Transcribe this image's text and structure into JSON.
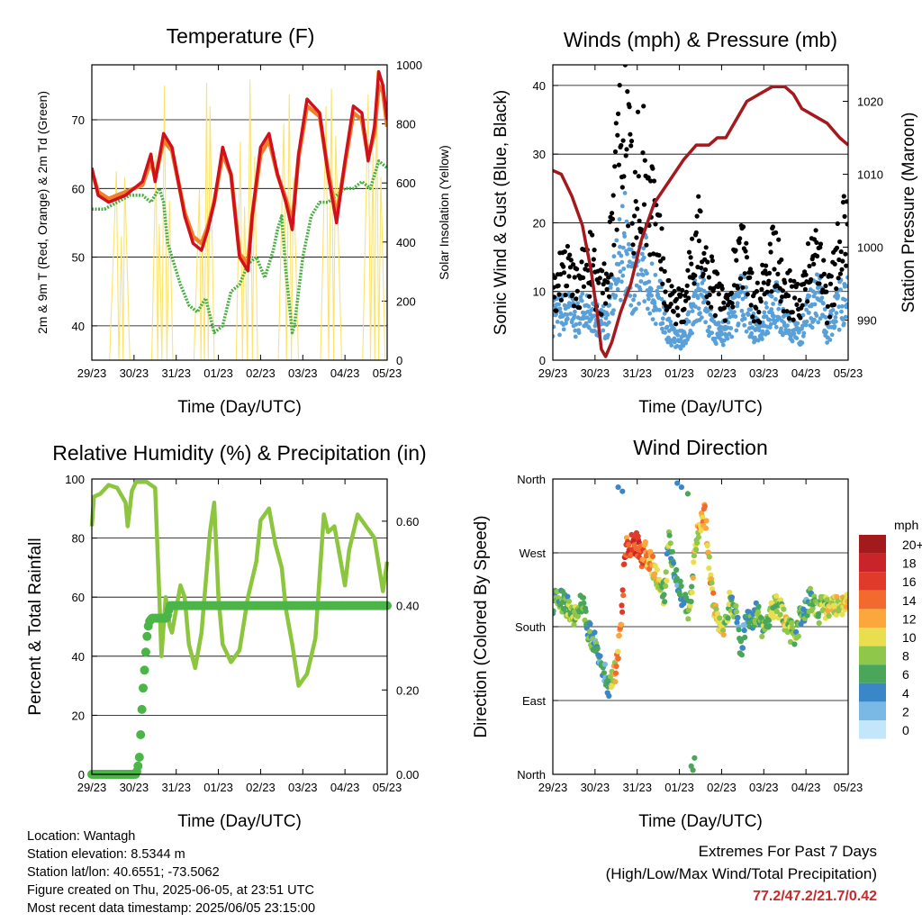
{
  "info": {
    "location": "Location: Wantagh",
    "elevation": "Station elevation: 8.5344 m",
    "latlon": "Station lat/lon: 40.6551; -73.5062",
    "created": "Figure created on Thu, 2025-06-05, at 23:51 UTC",
    "recent": "Most recent data timestamp: 2025/06/05 23:15:00"
  },
  "extremes": {
    "title": "Extremes For Past 7 Days",
    "subtitle": "(High/Low/Max Wind/Total Precipitation)",
    "values": "77.2/47.2/21.7/0.42"
  },
  "time_ticks": [
    "29/23",
    "30/23",
    "31/23",
    "01/23",
    "02/23",
    "03/23",
    "04/23",
    "05/23"
  ],
  "colors": {
    "temp2m": "#d0111b",
    "temp9m": "#f07f2a",
    "dewpoint": "#4aae43",
    "solar": "#fbe46e",
    "gust": "#000000",
    "sonic": "#5aa0d8",
    "pressure": "#a3191e",
    "rh": "#8cc63e",
    "precip": "#4cb548"
  },
  "chart_data": [
    {
      "type": "line",
      "title": "Temperature (F)",
      "xlabel": "Time (Day/UTC)",
      "ylabel": "2m & 9m T (Red, Orange) & 2m Td (Green)",
      "ylabel_right": "Solar Insolation (Yellow)",
      "ylim": [
        35,
        78
      ],
      "yticks": [
        40,
        50,
        60,
        70
      ],
      "ylim_right": [
        0,
        1000
      ],
      "yticks_right": [
        0,
        200,
        400,
        600,
        800,
        1000
      ],
      "x_days": [
        0,
        7
      ],
      "series": [
        {
          "key": "temp2m",
          "x": [
            0,
            0.15,
            0.4,
            0.8,
            1.2,
            1.4,
            1.5,
            1.7,
            1.9,
            2.2,
            2.4,
            2.6,
            2.75,
            2.9,
            3.1,
            3.3,
            3.5,
            3.7,
            3.8,
            4.0,
            4.2,
            4.4,
            4.6,
            4.75,
            4.9,
            5.1,
            5.4,
            5.6,
            5.8,
            6.0,
            6.2,
            6.4,
            6.55,
            6.7,
            6.8,
            6.9,
            7.0
          ],
          "y": [
            63,
            59,
            58,
            59,
            61,
            65,
            61,
            68,
            66,
            56,
            52,
            51,
            54,
            58,
            66,
            62,
            50,
            48,
            56,
            66,
            68,
            62,
            58,
            54,
            65,
            73,
            71,
            62,
            55,
            64,
            72,
            71,
            64,
            69,
            77,
            75,
            70
          ]
        },
        {
          "key": "temp9m",
          "x": [
            0,
            0.15,
            0.4,
            0.8,
            1.2,
            1.4,
            1.5,
            1.7,
            1.9,
            2.2,
            2.4,
            2.6,
            2.75,
            2.9,
            3.1,
            3.3,
            3.5,
            3.7,
            3.8,
            4.0,
            4.2,
            4.4,
            4.6,
            4.75,
            4.9,
            5.1,
            5.4,
            5.6,
            5.8,
            6.0,
            6.2,
            6.4,
            6.55,
            6.7,
            6.8,
            6.9,
            7.0
          ],
          "y": [
            62.5,
            59.5,
            58.5,
            59.5,
            60.5,
            64,
            61.5,
            67,
            65.5,
            56.5,
            53,
            52,
            54.5,
            58,
            65,
            62,
            50.5,
            49,
            56,
            65,
            67,
            62,
            58.5,
            55,
            64.5,
            72,
            70.5,
            62.5,
            56,
            63.5,
            71,
            70,
            64.5,
            68,
            75,
            74,
            69
          ]
        },
        {
          "key": "dewpoint",
          "x": [
            0,
            0.3,
            0.6,
            0.9,
            1.2,
            1.4,
            1.5,
            1.6,
            1.7,
            1.8,
            1.9,
            2.1,
            2.3,
            2.5,
            2.7,
            2.9,
            3.1,
            3.3,
            3.5,
            3.7,
            3.9,
            4.1,
            4.3,
            4.4,
            4.5,
            4.6,
            4.75,
            4.8,
            5.0,
            5.2,
            5.4,
            5.6,
            5.8,
            6.0,
            6.2,
            6.4,
            6.6,
            6.8,
            7.0
          ],
          "y": [
            57,
            57,
            58,
            59,
            59,
            58,
            59,
            60,
            58,
            52,
            50,
            46,
            43,
            42,
            44,
            39,
            40,
            45,
            46,
            49,
            50,
            47,
            51,
            54,
            56,
            48,
            39,
            40,
            50,
            56,
            58,
            58,
            59,
            60,
            60,
            61,
            60,
            64,
            63
          ]
        },
        {
          "key": "solar",
          "type": "bands",
          "days": [
            {
              "start": 0.42,
              "peaks": [
                [
                  0.58,
                  640
                ],
                [
                  0.7,
                  420
                ],
                [
                  0.78,
                  620
                ]
              ],
              "end": 0.9
            },
            {
              "start": 1.42,
              "peaks": [
                [
                  1.52,
                  700
                ],
                [
                  1.6,
                  460
                ],
                [
                  1.72,
                  930
                ],
                [
                  1.84,
                  540
                ]
              ],
              "end": 1.92
            },
            {
              "start": 2.42,
              "peaks": [
                [
                  2.55,
                  580
                ],
                [
                  2.62,
                  420
                ],
                [
                  2.72,
                  940
                ],
                [
                  2.8,
                  860
                ]
              ],
              "end": 2.9
            },
            {
              "start": 3.42,
              "peaks": [
                [
                  3.52,
                  740
                ],
                [
                  3.62,
                  520
                ],
                [
                  3.75,
                  950
                ],
                [
                  3.86,
                  690
                ]
              ],
              "end": 3.93
            },
            {
              "start": 4.42,
              "peaks": [
                [
                  4.55,
                  800
                ],
                [
                  4.68,
                  900
                ],
                [
                  4.78,
                  620
                ]
              ],
              "end": 4.9
            },
            {
              "start": 5.42,
              "peaks": [
                [
                  5.55,
                  860
                ],
                [
                  5.68,
                  920
                ],
                [
                  5.78,
                  760
                ]
              ],
              "end": 5.92
            },
            {
              "start": 6.42,
              "peaks": [
                [
                  6.55,
                  900
                ],
                [
                  6.66,
                  700
                ],
                [
                  6.75,
                  980
                ],
                [
                  6.85,
                  620
                ]
              ],
              "end": 6.95
            }
          ]
        }
      ]
    },
    {
      "type": "scatter",
      "title": "Winds (mph) & Pressure (mb)",
      "xlabel": "Time (Day/UTC)",
      "ylabel": "Sonic Wind & Gust (Blue, Black)",
      "ylabel_right": "Station Pressure (Maroon)",
      "ylim": [
        0,
        43
      ],
      "yticks": [
        0,
        10,
        20,
        30,
        40
      ],
      "ylim_right": [
        984.5,
        1025
      ],
      "yticks_right": [
        990,
        1000,
        1010,
        1020
      ],
      "x_days": [
        0,
        7
      ],
      "gust_envelope": {
        "x": [
          0,
          0.3,
          0.6,
          0.9,
          1.1,
          1.3,
          1.5,
          1.7,
          1.9,
          2.1,
          2.3,
          2.5,
          2.7,
          2.9,
          3.1,
          3.3,
          3.5,
          3.7,
          3.9,
          4.1,
          4.3,
          4.5,
          4.7,
          4.9,
          5.1,
          5.3,
          5.5,
          5.7,
          5.9,
          6.1,
          6.3,
          6.5,
          6.7,
          6.9,
          7.0
        ],
        "y": [
          10,
          12,
          11,
          14,
          9,
          11,
          25,
          33,
          22,
          28,
          22,
          18,
          10,
          8,
          7,
          14,
          18,
          12,
          9,
          8,
          12,
          15,
          9,
          8,
          13,
          14,
          10,
          9,
          9,
          14,
          15,
          8,
          13,
          17,
          18
        ]
      },
      "sonic_envelope": {
        "x": [
          0,
          0.3,
          0.6,
          0.9,
          1.1,
          1.3,
          1.5,
          1.7,
          1.9,
          2.1,
          2.3,
          2.5,
          2.7,
          2.9,
          3.1,
          3.3,
          3.5,
          3.7,
          3.9,
          4.1,
          4.3,
          4.5,
          4.7,
          4.9,
          5.1,
          5.3,
          5.5,
          5.7,
          5.9,
          6.1,
          6.3,
          6.5,
          6.7,
          6.9,
          7.0
        ],
        "y": [
          6,
          7,
          6,
          8,
          5,
          6,
          12,
          18,
          11,
          14,
          11,
          9,
          5,
          3,
          3,
          7,
          10,
          6,
          4,
          4,
          7,
          9,
          5,
          4,
          7,
          8,
          5,
          4,
          4,
          8,
          9,
          4,
          7,
          9,
          10
        ]
      },
      "pressure": {
        "x": [
          0,
          0.2,
          0.45,
          0.7,
          0.9,
          1.05,
          1.15,
          1.25,
          1.4,
          1.6,
          1.85,
          2.1,
          2.4,
          2.75,
          3.1,
          3.4,
          3.7,
          3.9,
          4.1,
          4.3,
          4.6,
          4.9,
          5.2,
          5.35,
          5.5,
          5.7,
          5.9,
          6.2,
          6.5,
          6.8,
          7.0
        ],
        "y": [
          1010.5,
          1010,
          1007,
          1003,
          997,
          991,
          986,
          985,
          987,
          991,
          995,
          1001,
          1006,
          1009,
          1012,
          1014,
          1014,
          1015,
          1015,
          1017,
          1020,
          1021,
          1022,
          1022,
          1022,
          1021,
          1019,
          1018,
          1017,
          1015,
          1014
        ]
      }
    },
    {
      "type": "line",
      "title": "Relative Humidity (%) & Precipitation (in)",
      "xlabel": "Time (Day/UTC)",
      "ylabel": "Percent & Total Rainfall",
      "ylim": [
        0,
        100
      ],
      "yticks": [
        0,
        20,
        40,
        60,
        80,
        100
      ],
      "ylim_right": [
        0,
        0.7
      ],
      "yticks_right": [
        0.0,
        0.2,
        0.4,
        0.6
      ],
      "yticks_right_labels": [
        "0.00",
        "0.20",
        "0.40",
        "0.60"
      ],
      "x_days": [
        0,
        7
      ],
      "series": [
        {
          "key": "rh",
          "x": [
            0,
            0.05,
            0.2,
            0.4,
            0.6,
            0.8,
            0.85,
            0.95,
            1.05,
            1.3,
            1.5,
            1.6,
            1.65,
            1.75,
            1.85,
            1.9,
            2.0,
            2.1,
            2.2,
            2.3,
            2.45,
            2.6,
            2.8,
            2.9,
            3.0,
            3.1,
            3.3,
            3.5,
            3.7,
            3.9,
            4.0,
            4.2,
            4.35,
            4.5,
            4.6,
            4.75,
            4.9,
            5.1,
            5.3,
            5.5,
            5.6,
            5.75,
            5.9,
            6.0,
            6.1,
            6.3,
            6.5,
            6.7,
            6.9,
            7.0
          ],
          "y": [
            84,
            94,
            95,
            98,
            97,
            92,
            84,
            96,
            99,
            99,
            97,
            60,
            40,
            60,
            50,
            48,
            56,
            64,
            60,
            44,
            36,
            48,
            82,
            92,
            60,
            44,
            38,
            42,
            60,
            72,
            86,
            90,
            78,
            70,
            56,
            44,
            30,
            34,
            46,
            88,
            82,
            84,
            72,
            64,
            76,
            88,
            84,
            80,
            62,
            72
          ]
        },
        {
          "key": "precip",
          "x": [
            0,
            0.25,
            0.5,
            0.8,
            1.05,
            1.12,
            1.16,
            1.2,
            1.25,
            1.3,
            1.35,
            1.42,
            1.5,
            1.6,
            1.7,
            1.78,
            1.85,
            2.0,
            3.0,
            4.0,
            5.0,
            6.0,
            7.0
          ],
          "y": [
            0,
            0,
            0,
            0,
            0,
            0.03,
            0.1,
            0.18,
            0.25,
            0.32,
            0.36,
            0.37,
            0.37,
            0.37,
            0.37,
            0.37,
            0.4,
            0.4,
            0.4,
            0.4,
            0.4,
            0.4,
            0.4
          ]
        }
      ]
    },
    {
      "type": "scatter",
      "title": "Wind Direction",
      "xlabel": "Time (Day/UTC)",
      "ylabel": "Direction (Colored By Speed)",
      "ylim": [
        0,
        360
      ],
      "yticks": [
        0,
        90,
        180,
        270,
        360
      ],
      "ytick_labels": [
        "North",
        "East",
        "South",
        "West",
        "North"
      ],
      "x_days": [
        0,
        7
      ],
      "colorbar": {
        "title": "mph",
        "labels": [
          "20+",
          "18",
          "16",
          "14",
          "12",
          "10",
          "8",
          "6",
          "4",
          "2",
          "0"
        ],
        "colors": [
          "#a31a1c",
          "#c8242a",
          "#e03a2b",
          "#f26a2d",
          "#fba73d",
          "#e8de50",
          "#8ec74a",
          "#4aa65a",
          "#3a86c6",
          "#7ab8e6",
          "#c4e6fa"
        ]
      },
      "trace": {
        "x": [
          0,
          0.2,
          0.35,
          0.5,
          0.7,
          0.85,
          1.0,
          1.15,
          1.25,
          1.35,
          1.5,
          1.6,
          1.7,
          1.75,
          1.8,
          1.9,
          2.0,
          2.1,
          2.2,
          2.35,
          2.45,
          2.55,
          2.65,
          2.75,
          2.85,
          2.95,
          3.05,
          3.1,
          3.2,
          3.3,
          3.4,
          3.5,
          3.55,
          3.6,
          3.7,
          3.8,
          3.9,
          3.95,
          4.05,
          4.15,
          4.2,
          4.3,
          4.35,
          4.45,
          4.55,
          4.6,
          4.75,
          4.85,
          4.95,
          5.1,
          5.25,
          5.4,
          5.55,
          5.7,
          5.8,
          5.9,
          6.0,
          6.1,
          6.2,
          6.3,
          6.4,
          6.5,
          6.6,
          6.8,
          7.0
        ],
        "y": [
          210,
          212,
          205,
          195,
          210,
          175,
          160,
          140,
          120,
          105,
          130,
          170,
          260,
          275,
          272,
          285,
          280,
          265,
          270,
          255,
          240,
          230,
          215,
          290,
          260,
          240,
          220,
          210,
          200,
          230,
          280,
          310,
          300,
          320,
          260,
          210,
          190,
          190,
          175,
          200,
          210,
          205,
          195,
          150,
          180,
          190,
          190,
          200,
          180,
          190,
          205,
          200,
          180,
          170,
          175,
          200,
          200,
          215,
          210,
          195,
          210,
          200,
          210,
          205,
          215
        ]
      },
      "speed": {
        "x": [
          0,
          0.5,
          1.0,
          1.3,
          1.5,
          1.7,
          2.0,
          2.5,
          3.0,
          3.5,
          4.0,
          4.5,
          5.0,
          5.5,
          6.0,
          6.5,
          7.0
        ],
        "y": [
          6,
          8,
          5,
          4,
          12,
          15,
          16,
          9,
          4,
          12,
          10,
          4,
          7,
          9,
          5,
          9,
          10
        ]
      }
    }
  ]
}
